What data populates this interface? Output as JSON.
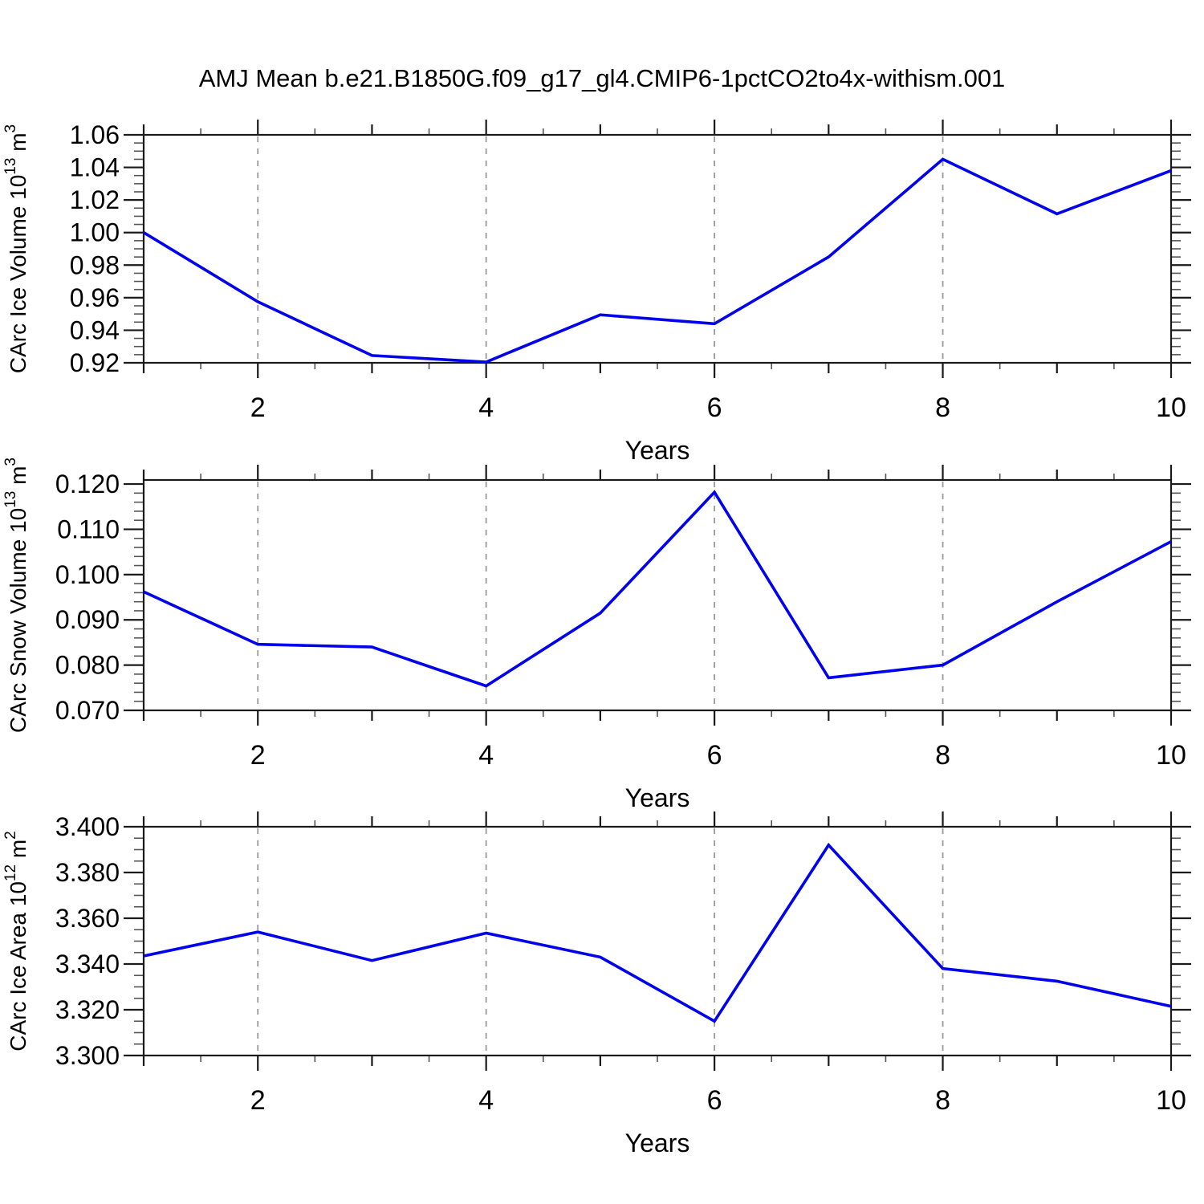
{
  "title": "AMJ Mean b.e21.B1850G.f09_g17_gl4.CMIP6-1pctCO2to4x-withism.001",
  "colors": {
    "line": "#0000EE",
    "frame": "#1a1a1a",
    "grid": "#9a9a9a",
    "tick_major": "#1a1a1a",
    "tick_minor": "#555555",
    "text": "#000000",
    "background": "#ffffff"
  },
  "chart_data": [
    {
      "type": "line",
      "title": "AMJ Mean b.e21.B1850G.f09_g17_gl4.CMIP6-1pctCO2to4x-withism.001",
      "xlabel": "Years",
      "ylabel": "CArc Ice Volume 10^13 m^3",
      "ylabel_segments": [
        {
          "t": "CArc Ice Volume 10"
        },
        {
          "t": "13",
          "sup": true
        },
        {
          "t": " m"
        },
        {
          "t": "3",
          "sup": true
        }
      ],
      "x": [
        1,
        2,
        3,
        4,
        5,
        6,
        7,
        8,
        9,
        10
      ],
      "values": [
        1.0,
        0.9575,
        0.9245,
        0.9205,
        0.9495,
        0.944,
        0.985,
        1.045,
        1.0115,
        1.038
      ],
      "xlim": [
        1,
        10
      ],
      "ylim": [
        0.92,
        1.06
      ],
      "ytick_major": 0.02,
      "ytick_minor": 0.005,
      "ydecimals": 2,
      "ytick_labels": [
        "0.92",
        "0.94",
        "0.96",
        "0.98",
        "1.00",
        "1.02",
        "1.04",
        "1.06"
      ],
      "xticks_labeled": [
        2,
        4,
        6,
        8,
        10
      ],
      "xtick_minor_step": 0.5,
      "grid_x": [
        2,
        4,
        6,
        8
      ],
      "grid": "vertical-dashed",
      "legend": "none"
    },
    {
      "type": "line",
      "xlabel": "Years",
      "ylabel": "CArc Snow Volume 10^13 m^3",
      "ylabel_segments": [
        {
          "t": "CArc Snow Volume 10"
        },
        {
          "t": "13",
          "sup": true
        },
        {
          "t": " m"
        },
        {
          "t": "3",
          "sup": true
        }
      ],
      "x": [
        1,
        2,
        3,
        4,
        5,
        6,
        7,
        8,
        9,
        10
      ],
      "values": [
        0.0962,
        0.0846,
        0.084,
        0.0754,
        0.0915,
        0.1182,
        0.0772,
        0.08,
        0.094,
        0.1073
      ],
      "xlim": [
        1,
        10
      ],
      "ylim": [
        0.07,
        0.1209
      ],
      "ytick_major": 0.01,
      "ytick_minor": 0.002,
      "ydecimals": 3,
      "ytick_labels": [
        "0.070",
        "0.080",
        "0.090",
        "0.100",
        "0.110",
        "0.120"
      ],
      "xticks_labeled": [
        2,
        4,
        6,
        8,
        10
      ],
      "xtick_minor_step": 0.5,
      "grid_x": [
        2,
        4,
        6,
        8
      ],
      "grid": "vertical-dashed",
      "legend": "none"
    },
    {
      "type": "line",
      "xlabel": "Years",
      "ylabel": "CArc Ice Area 10^12 m^2",
      "ylabel_segments": [
        {
          "t": "CArc Ice Area 10"
        },
        {
          "t": "12",
          "sup": true
        },
        {
          "t": " m"
        },
        {
          "t": "2",
          "sup": true
        }
      ],
      "x": [
        1,
        2,
        3,
        4,
        5,
        6,
        7,
        8,
        9,
        10
      ],
      "values": [
        3.3435,
        3.354,
        3.3415,
        3.3535,
        3.343,
        3.315,
        3.392,
        3.338,
        3.3325,
        3.3215
      ],
      "xlim": [
        1,
        10
      ],
      "ylim": [
        3.3,
        3.4
      ],
      "ytick_major": 0.02,
      "ytick_minor": 0.005,
      "ydecimals": 3,
      "ytick_labels": [
        "3.300",
        "3.320",
        "3.340",
        "3.360",
        "3.380",
        "3.400"
      ],
      "xticks_labeled": [
        2,
        4,
        6,
        8,
        10
      ],
      "xtick_minor_step": 0.5,
      "grid_x": [
        2,
        4,
        6,
        8
      ],
      "grid": "vertical-dashed",
      "legend": "none"
    }
  ]
}
